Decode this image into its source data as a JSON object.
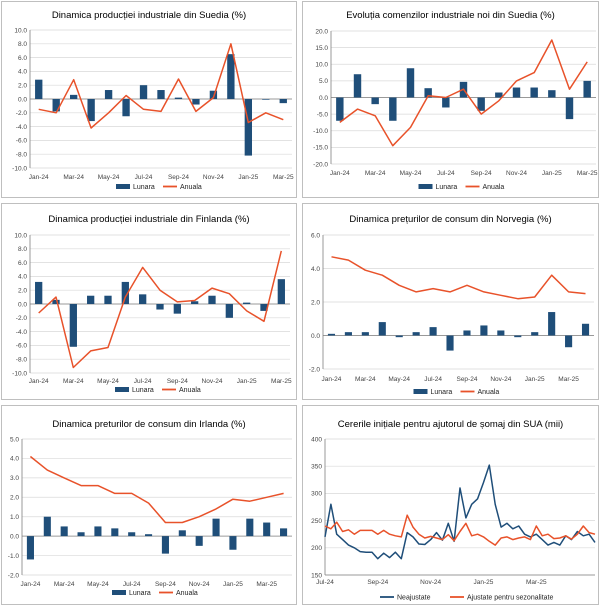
{
  "colors": {
    "bar": "#1f4e79",
    "line_red": "#e8522a",
    "line_blue": "#1f4e79",
    "grid": "#d9d9d9",
    "axis": "#808080"
  },
  "chart_data": [
    {
      "type": "bar",
      "title": "Dinamica producției industriale din Suedia (%)",
      "ylim": [
        -10,
        10
      ],
      "ystep": 2,
      "ydecimals": 1,
      "xlabels": [
        "Jan-24",
        "Mar-24",
        "May-24",
        "Jul-24",
        "Sep-24",
        "Nov-24",
        "Jan-25",
        "Mar-25"
      ],
      "legend": [
        "Lunara",
        "Anuala"
      ],
      "series": [
        {
          "name": "Lunara",
          "kind": "bar",
          "values": [
            2.8,
            -1.8,
            0.6,
            -3.2,
            1.3,
            -2.5,
            2.0,
            1.3,
            0.2,
            -0.8,
            1.2,
            6.5,
            -8.2,
            -0.1,
            -0.6
          ]
        },
        {
          "name": "Anuala",
          "kind": "line",
          "values": [
            -1.5,
            -2.0,
            2.8,
            -4.2,
            -2.0,
            0.5,
            -1.5,
            -1.8,
            2.9,
            -1.8,
            0.2,
            8.0,
            -3.4,
            -2.0,
            -3.0
          ]
        }
      ]
    },
    {
      "type": "bar",
      "title": "Evoluția comenzilor industriale noi din Suedia (%)",
      "ylim": [
        -20,
        20
      ],
      "ystep": 5,
      "ydecimals": 1,
      "xlabels": [
        "Jan-24",
        "Mar-24",
        "May-24",
        "Jul-24",
        "Sep-24",
        "Nov-24",
        "Jan-25",
        "Mar-25"
      ],
      "legend": [
        "Lunara",
        "Anuala"
      ],
      "series": [
        {
          "name": "Lunara",
          "kind": "bar",
          "values": [
            -7.0,
            7.0,
            -2.0,
            -7.0,
            8.8,
            2.8,
            -3.0,
            4.7,
            -4.0,
            1.5,
            3.0,
            3.0,
            2.2,
            -6.5,
            5.0
          ]
        },
        {
          "name": "Anuala",
          "kind": "line",
          "values": [
            -7.5,
            -3.5,
            -5.5,
            -14.5,
            -9.0,
            0.5,
            0.0,
            2.5,
            -5.0,
            -1.0,
            5.0,
            7.5,
            17.3,
            2.5,
            10.7
          ]
        }
      ]
    },
    {
      "type": "bar",
      "title": "Dinamica producției industriale din Finlanda (%)",
      "ylim": [
        -10,
        10
      ],
      "ystep": 2,
      "ydecimals": 1,
      "xlabels": [
        "Jan-24",
        "Mar-24",
        "May-24",
        "Jul-24",
        "Sep-24",
        "Nov-24",
        "Jan-25",
        "Mar-25"
      ],
      "legend": [
        "Lunara",
        "Anuala"
      ],
      "series": [
        {
          "name": "Lunara",
          "kind": "bar",
          "values": [
            3.2,
            0.6,
            -6.2,
            1.2,
            1.2,
            3.2,
            1.4,
            -0.8,
            -1.4,
            0.4,
            1.2,
            -2.0,
            0.2,
            -1.0,
            3.6
          ]
        },
        {
          "name": "Anuala",
          "kind": "line",
          "values": [
            -1.3,
            1.0,
            -9.2,
            -6.8,
            -6.3,
            1.0,
            5.3,
            2.0,
            0.3,
            0.5,
            2.3,
            1.5,
            -1.0,
            -2.5,
            7.7
          ]
        }
      ]
    },
    {
      "type": "bar",
      "title": "Dinamica prețurilor de consum din Norvegia (%)",
      "ylim": [
        -2,
        6
      ],
      "ystep": 2,
      "ydecimals": 1,
      "xlabels": [
        "Jan-24",
        "Mar-24",
        "May-24",
        "Jul-24",
        "Sep-24",
        "Nov-24",
        "Jan-25",
        "Mar-25"
      ],
      "legend": [
        "Lunara",
        "Anuala"
      ],
      "series": [
        {
          "name": "Lunara",
          "kind": "bar",
          "values": [
            0.1,
            0.2,
            0.2,
            0.8,
            -0.1,
            0.2,
            0.5,
            -0.9,
            0.3,
            0.6,
            0.3,
            -0.1,
            0.2,
            1.4,
            -0.7,
            0.7
          ]
        },
        {
          "name": "Anuala",
          "kind": "line",
          "values": [
            4.7,
            4.5,
            3.9,
            3.6,
            3.0,
            2.6,
            2.8,
            2.6,
            3.0,
            2.6,
            2.4,
            2.2,
            2.3,
            3.6,
            2.6,
            2.5
          ]
        }
      ]
    },
    {
      "type": "bar",
      "title": "Dinamica preturilor de consum din Irlanda (%)",
      "ylim": [
        -2,
        5
      ],
      "ystep": 1,
      "ydecimals": 1,
      "xlabels": [
        "Jan-24",
        "Mar-24",
        "May-24",
        "Jul-24",
        "Sep-24",
        "Nov-24",
        "Jan-25",
        "Mar-25"
      ],
      "legend": [
        "Lunara",
        "Anuala"
      ],
      "series": [
        {
          "name": "Lunara",
          "kind": "bar",
          "values": [
            -1.2,
            1.0,
            0.5,
            0.2,
            0.5,
            0.4,
            0.2,
            0.1,
            -0.9,
            0.3,
            -0.5,
            0.9,
            -0.7,
            0.9,
            0.7,
            0.4
          ]
        },
        {
          "name": "Anuala",
          "kind": "line",
          "values": [
            4.1,
            3.4,
            3.0,
            2.6,
            2.6,
            2.2,
            2.2,
            1.7,
            0.7,
            0.7,
            1.0,
            1.4,
            1.9,
            1.8,
            2.0,
            2.2
          ]
        }
      ]
    },
    {
      "type": "line",
      "title": "Cererile inițiale pentru ajutorul de șomaj din SUA (mii)",
      "ylim": [
        150,
        400
      ],
      "ystep": 50,
      "ydecimals": 0,
      "xlabels": [
        "Jul-24",
        "Sep-24",
        "Nov-24",
        "Jan-25",
        "Mar-25"
      ],
      "legend": [
        "Neajustate",
        "Ajustate pentru sezonalitate"
      ],
      "series": [
        {
          "name": "Neajustate",
          "kind": "line",
          "values": [
            220,
            280,
            225,
            215,
            205,
            200,
            193,
            192,
            192,
            180,
            190,
            182,
            192,
            180,
            228,
            220,
            207,
            206,
            215,
            228,
            214,
            245,
            212,
            310,
            255,
            280,
            290,
            320,
            352,
            280,
            238,
            245,
            235,
            240,
            225,
            220,
            225,
            215,
            205,
            210,
            205,
            222,
            215,
            230,
            222,
            225,
            210
          ]
        },
        {
          "name": "Ajustate pentru sezonalitate",
          "kind": "line",
          "values": [
            240,
            235,
            247,
            230,
            233,
            225,
            232,
            232,
            232,
            225,
            232,
            225,
            222,
            220,
            260,
            238,
            225,
            218,
            221,
            218,
            215,
            224,
            213,
            230,
            245,
            222,
            225,
            220,
            212,
            205,
            218,
            220,
            215,
            218,
            220,
            215,
            240,
            222,
            225,
            217,
            218,
            222,
            216,
            225,
            240,
            228,
            225
          ]
        }
      ]
    }
  ]
}
